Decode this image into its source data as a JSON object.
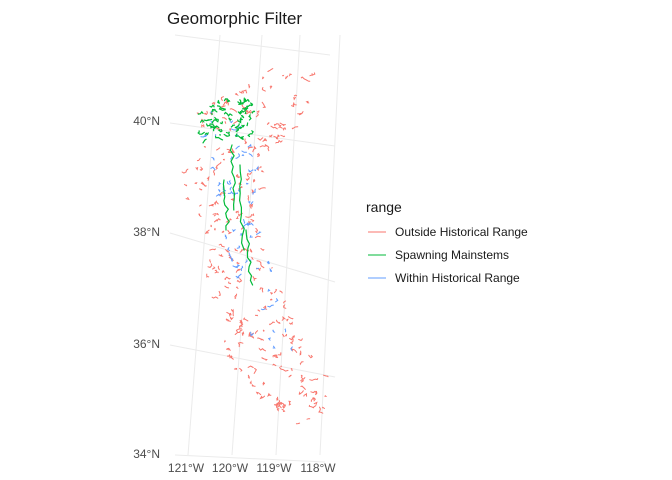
{
  "map": {
    "title": "Geomorphic Filter",
    "lat_ticks": [
      "40°N",
      "38°N",
      "36°N",
      "34°N"
    ],
    "lon_ticks": [
      "121°W",
      "120°W",
      "119°W",
      "118°W"
    ],
    "legend": {
      "title": "range",
      "items": [
        {
          "label": "Outside Historical Range",
          "color": "#F8766D"
        },
        {
          "label": "Spawning Mainstems",
          "color": "#00BA38"
        },
        {
          "label": "Within Historical Range",
          "color": "#619CFF"
        }
      ]
    }
  }
}
